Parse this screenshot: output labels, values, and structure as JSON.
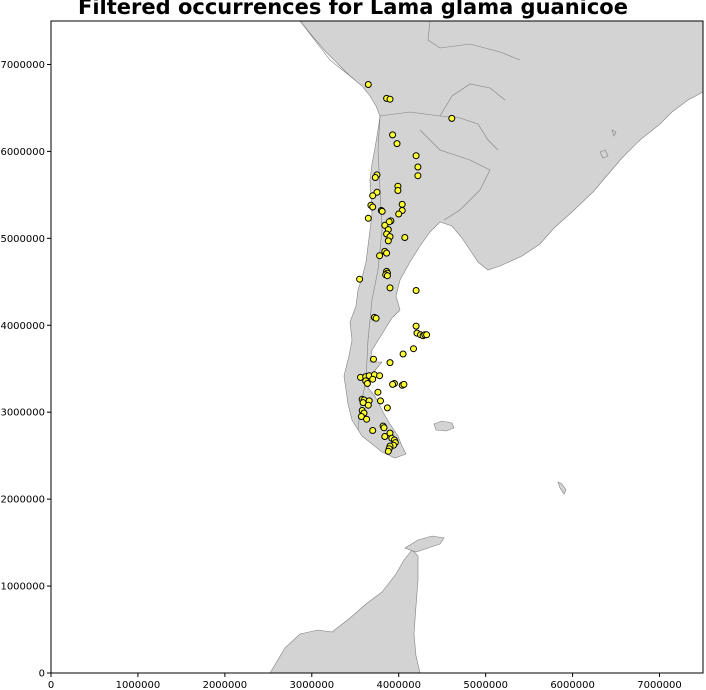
{
  "chart_data": {
    "type": "scatter",
    "title": "Filtered occurrences for Lama glama guanicoe",
    "xlabel": "",
    "ylabel": "",
    "xlim": [
      0,
      7500000
    ],
    "ylim": [
      0,
      7500000
    ],
    "xticks": [
      0,
      1000000,
      2000000,
      3000000,
      4000000,
      5000000,
      6000000,
      7000000
    ],
    "xtick_labels": [
      "0",
      "1000000",
      "2000000",
      "3000000",
      "4000000",
      "5000000",
      "6000000",
      "7000000"
    ],
    "yticks": [
      0,
      1000000,
      2000000,
      3000000,
      4000000,
      5000000,
      6000000,
      7000000
    ],
    "ytick_labels": [
      "0",
      "1000000",
      "2000000",
      "3000000",
      "4000000",
      "5000000",
      "6000000",
      "7000000"
    ],
    "grid": false,
    "basemap": "South America and Antarctic Peninsula landmass",
    "colors": {
      "land": "#d3d3d3",
      "border": "#808080",
      "marker_fill": "#ffff33",
      "marker_edge": "#000000"
    },
    "points": [
      {
        "x": 3650000,
        "y": 6770000
      },
      {
        "x": 3860000,
        "y": 6610000
      },
      {
        "x": 3900000,
        "y": 6600000
      },
      {
        "x": 4610000,
        "y": 6380000
      },
      {
        "x": 3930000,
        "y": 6190000
      },
      {
        "x": 3980000,
        "y": 6090000
      },
      {
        "x": 4200000,
        "y": 5950000
      },
      {
        "x": 4220000,
        "y": 5820000
      },
      {
        "x": 4220000,
        "y": 5720000
      },
      {
        "x": 3750000,
        "y": 5730000
      },
      {
        "x": 3730000,
        "y": 5700000
      },
      {
        "x": 3990000,
        "y": 5600000
      },
      {
        "x": 3990000,
        "y": 5550000
      },
      {
        "x": 3750000,
        "y": 5530000
      },
      {
        "x": 3700000,
        "y": 5490000
      },
      {
        "x": 3680000,
        "y": 5380000
      },
      {
        "x": 3700000,
        "y": 5360000
      },
      {
        "x": 4040000,
        "y": 5390000
      },
      {
        "x": 3800000,
        "y": 5320000
      },
      {
        "x": 3810000,
        "y": 5310000
      },
      {
        "x": 4040000,
        "y": 5320000
      },
      {
        "x": 4000000,
        "y": 5280000
      },
      {
        "x": 3650000,
        "y": 5230000
      },
      {
        "x": 3910000,
        "y": 5200000
      },
      {
        "x": 3890000,
        "y": 5190000
      },
      {
        "x": 3840000,
        "y": 5150000
      },
      {
        "x": 3880000,
        "y": 5100000
      },
      {
        "x": 3860000,
        "y": 5050000
      },
      {
        "x": 3900000,
        "y": 5020000
      },
      {
        "x": 4070000,
        "y": 5010000
      },
      {
        "x": 3880000,
        "y": 4970000
      },
      {
        "x": 3840000,
        "y": 4850000
      },
      {
        "x": 3860000,
        "y": 4830000
      },
      {
        "x": 3780000,
        "y": 4800000
      },
      {
        "x": 3860000,
        "y": 4620000
      },
      {
        "x": 3870000,
        "y": 4600000
      },
      {
        "x": 3850000,
        "y": 4580000
      },
      {
        "x": 3870000,
        "y": 4570000
      },
      {
        "x": 3550000,
        "y": 4530000
      },
      {
        "x": 3900000,
        "y": 4430000
      },
      {
        "x": 4200000,
        "y": 4400000
      },
      {
        "x": 3720000,
        "y": 4090000
      },
      {
        "x": 3740000,
        "y": 4080000
      },
      {
        "x": 4200000,
        "y": 3990000
      },
      {
        "x": 4210000,
        "y": 3910000
      },
      {
        "x": 4250000,
        "y": 3890000
      },
      {
        "x": 4280000,
        "y": 3880000
      },
      {
        "x": 4300000,
        "y": 3890000
      },
      {
        "x": 4320000,
        "y": 3890000
      },
      {
        "x": 4170000,
        "y": 3730000
      },
      {
        "x": 4050000,
        "y": 3670000
      },
      {
        "x": 3710000,
        "y": 3610000
      },
      {
        "x": 3900000,
        "y": 3570000
      },
      {
        "x": 3560000,
        "y": 3400000
      },
      {
        "x": 3620000,
        "y": 3410000
      },
      {
        "x": 3660000,
        "y": 3420000
      },
      {
        "x": 3720000,
        "y": 3430000
      },
      {
        "x": 3780000,
        "y": 3420000
      },
      {
        "x": 3620000,
        "y": 3360000
      },
      {
        "x": 3640000,
        "y": 3330000
      },
      {
        "x": 3700000,
        "y": 3380000
      },
      {
        "x": 3950000,
        "y": 3330000
      },
      {
        "x": 3930000,
        "y": 3320000
      },
      {
        "x": 4040000,
        "y": 3310000
      },
      {
        "x": 4060000,
        "y": 3320000
      },
      {
        "x": 3760000,
        "y": 3230000
      },
      {
        "x": 3580000,
        "y": 3150000
      },
      {
        "x": 3600000,
        "y": 3140000
      },
      {
        "x": 3590000,
        "y": 3110000
      },
      {
        "x": 3660000,
        "y": 3130000
      },
      {
        "x": 3650000,
        "y": 3080000
      },
      {
        "x": 3790000,
        "y": 3130000
      },
      {
        "x": 3870000,
        "y": 3050000
      },
      {
        "x": 3580000,
        "y": 3020000
      },
      {
        "x": 3600000,
        "y": 2990000
      },
      {
        "x": 3570000,
        "y": 2950000
      },
      {
        "x": 3630000,
        "y": 2920000
      },
      {
        "x": 3820000,
        "y": 2840000
      },
      {
        "x": 3830000,
        "y": 2820000
      },
      {
        "x": 3700000,
        "y": 2790000
      },
      {
        "x": 3900000,
        "y": 2760000
      },
      {
        "x": 3840000,
        "y": 2720000
      },
      {
        "x": 3920000,
        "y": 2700000
      },
      {
        "x": 3950000,
        "y": 2680000
      },
      {
        "x": 3960000,
        "y": 2650000
      },
      {
        "x": 3940000,
        "y": 2620000
      },
      {
        "x": 3900000,
        "y": 2610000
      },
      {
        "x": 3890000,
        "y": 2580000
      },
      {
        "x": 3880000,
        "y": 2550000
      }
    ]
  }
}
